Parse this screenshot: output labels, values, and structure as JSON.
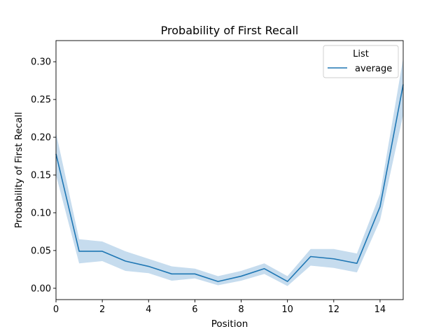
{
  "chart_data": {
    "type": "line",
    "title": "Probability of First Recall",
    "xlabel": "Position",
    "ylabel": "Probability of First Recall",
    "xlim": [
      0,
      15
    ],
    "ylim": [
      -0.015,
      0.328
    ],
    "xticks": [
      0,
      2,
      4,
      6,
      8,
      10,
      12,
      14
    ],
    "yticks": [
      0.0,
      0.05,
      0.1,
      0.15,
      0.2,
      0.25,
      0.3
    ],
    "grid": false,
    "legend": {
      "title": "List",
      "placement": "top-right"
    },
    "colors": {
      "line": "#1f77b4",
      "band": "#c6dcee"
    },
    "series": [
      {
        "name": "average",
        "x": [
          0,
          1,
          2,
          3,
          4,
          5,
          6,
          7,
          8,
          9,
          10,
          11,
          12,
          13,
          14,
          15
        ],
        "y": [
          0.178,
          0.049,
          0.049,
          0.036,
          0.029,
          0.019,
          0.019,
          0.009,
          0.016,
          0.026,
          0.009,
          0.042,
          0.039,
          0.033,
          0.108,
          0.27
        ],
        "lower": [
          0.15,
          0.033,
          0.036,
          0.023,
          0.02,
          0.01,
          0.013,
          0.004,
          0.01,
          0.019,
          0.003,
          0.03,
          0.027,
          0.021,
          0.09,
          0.23
        ],
        "upper": [
          0.206,
          0.065,
          0.062,
          0.049,
          0.039,
          0.029,
          0.026,
          0.016,
          0.023,
          0.033,
          0.016,
          0.052,
          0.052,
          0.046,
          0.125,
          0.305
        ]
      }
    ]
  }
}
